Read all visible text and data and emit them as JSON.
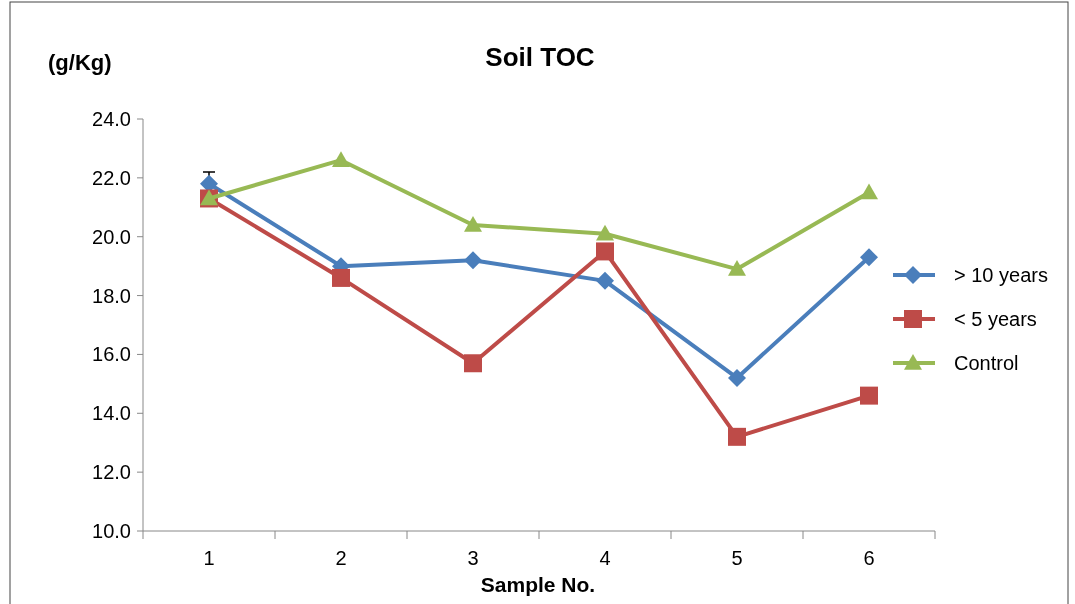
{
  "chart_data": {
    "type": "line",
    "title": "Soil TOC",
    "xlabel": "Sample No.",
    "ylabel": "(g/Kg)",
    "categories": [
      "1",
      "2",
      "3",
      "4",
      "5",
      "6"
    ],
    "series": [
      {
        "name": "> 10 years",
        "color": "#4a7ebb",
        "marker": "diamond",
        "values": [
          21.8,
          19.0,
          19.2,
          18.5,
          15.2,
          19.3
        ],
        "errors": [
          0.4,
          null,
          null,
          null,
          null,
          null
        ]
      },
      {
        "name": "< 5 years",
        "color": "#be4b48",
        "marker": "square",
        "values": [
          21.3,
          18.6,
          15.7,
          19.5,
          13.2,
          14.6
        ]
      },
      {
        "name": "Control",
        "color": "#98b954",
        "marker": "triangle",
        "values": [
          21.3,
          22.6,
          20.4,
          20.1,
          18.9,
          21.5
        ]
      }
    ],
    "ylim": [
      10,
      24
    ],
    "yticks": [
      {
        "value": 10,
        "label": "10.0"
      },
      {
        "value": 12,
        "label": "12.0"
      },
      {
        "value": 14,
        "label": "14.0"
      },
      {
        "value": 16,
        "label": "16.0"
      },
      {
        "value": 18,
        "label": "18.0"
      },
      {
        "value": 20,
        "label": "20.0"
      },
      {
        "value": 22,
        "label": "22.0"
      },
      {
        "value": 24,
        "label": "24.0"
      }
    ],
    "grid": false,
    "legend": "right",
    "line_style": "solid"
  }
}
